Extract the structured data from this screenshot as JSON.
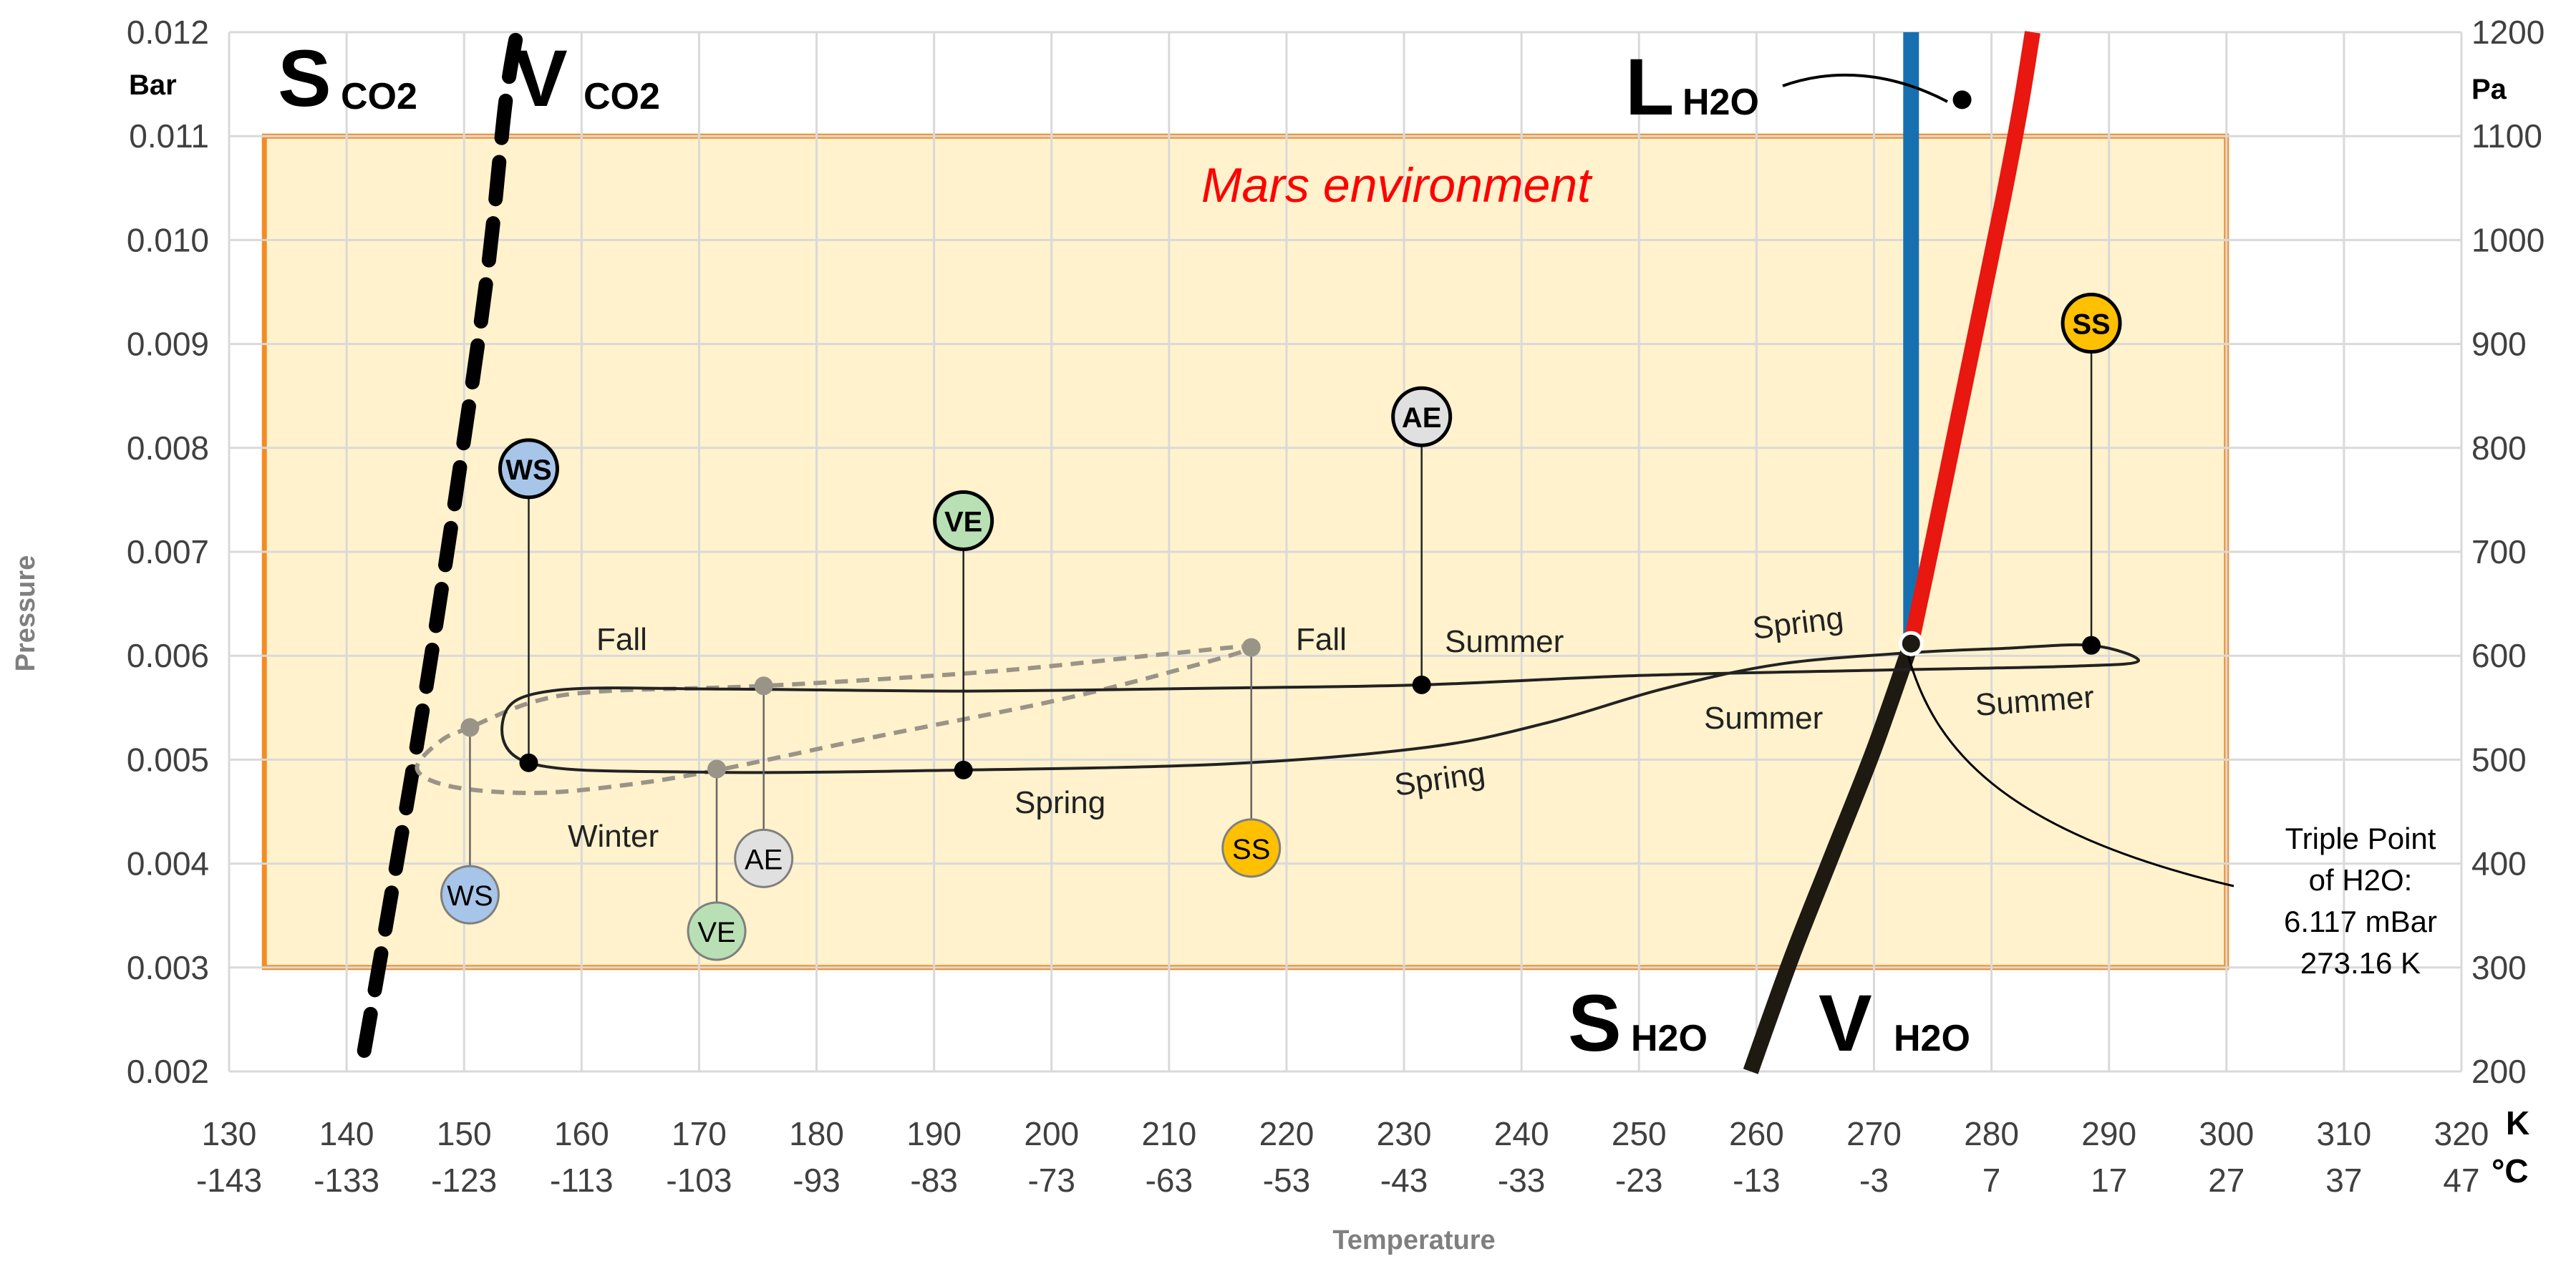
{
  "chart_data": {
    "type": "line",
    "title": "",
    "x_axis": {
      "label": "Temperature",
      "unit_top": "K",
      "unit_bottom": "°C",
      "range": [
        130,
        320
      ],
      "ticks_k": [
        "130",
        "140",
        "150",
        "160",
        "170",
        "180",
        "190",
        "200",
        "210",
        "220",
        "230",
        "240",
        "250",
        "260",
        "270",
        "280",
        "290",
        "300",
        "310",
        "320"
      ],
      "ticks_c": [
        "-143",
        "-133",
        "-123",
        "-113",
        "-103",
        "-93",
        "-83",
        "-73",
        "-63",
        "-53",
        "-43",
        "-33",
        "-23",
        "-13",
        "-3",
        "7",
        "17",
        "27",
        "37",
        "47"
      ]
    },
    "y_axis_left": {
      "label": "Pressure",
      "unit": "Bar",
      "range": [
        0.002,
        0.012
      ],
      "ticks": [
        "0.002",
        "0.003",
        "0.004",
        "0.005",
        "0.006",
        "0.007",
        "0.008",
        "0.009",
        "0.010",
        "0.011",
        "0.012"
      ]
    },
    "y_axis_right": {
      "unit": "Pa",
      "range": [
        200,
        1200
      ],
      "ticks": [
        "200",
        "300",
        "400",
        "500",
        "600",
        "700",
        "800",
        "900",
        "1000",
        "1100",
        "1200"
      ]
    },
    "grid": true,
    "mars_environment": {
      "label": "Mars environment",
      "x_range": [
        133,
        300
      ],
      "y_range": [
        0.003,
        0.011
      ]
    },
    "phase_labels": {
      "s_co2": {
        "main": "S",
        "sub": "CO2"
      },
      "v_co2": {
        "main": "V",
        "sub": "CO2"
      },
      "l_h2o": {
        "main": "L",
        "sub": "H2O"
      },
      "s_h2o": {
        "main": "S",
        "sub": "H2O"
      },
      "v_h2o": {
        "main": "V",
        "sub": "H2O"
      }
    },
    "series": [
      {
        "name": "CO2 sublimation boundary",
        "style": "dashed",
        "color": "#000000",
        "points": [
          [
            141.5,
            0.0022
          ],
          [
            143.5,
            0.0035
          ],
          [
            146.5,
            0.0055
          ],
          [
            149.5,
            0.0077
          ],
          [
            152,
            0.0097
          ],
          [
            153.5,
            0.0113
          ],
          [
            154.5,
            0.012
          ]
        ]
      },
      {
        "name": "H2O melting line",
        "color": "#1670b0",
        "points": [
          [
            273.16,
            0.006117
          ],
          [
            273.16,
            0.012
          ]
        ]
      },
      {
        "name": "H2O vaporization line",
        "color": "#e8170f",
        "points": [
          [
            273.16,
            0.006117
          ],
          [
            275,
            0.0071
          ],
          [
            277,
            0.0082
          ],
          [
            279,
            0.0093
          ],
          [
            281,
            0.0104
          ],
          [
            282.5,
            0.0113
          ],
          [
            283.5,
            0.012
          ]
        ]
      },
      {
        "name": "H2O sublimation line",
        "color": "#1e1a12",
        "points": [
          [
            259.5,
            0.002
          ],
          [
            263,
            0.0031
          ],
          [
            266.5,
            0.0041
          ],
          [
            270,
            0.0051
          ],
          [
            273.16,
            0.006117
          ]
        ]
      },
      {
        "name": "Seasonal cycle A",
        "style": "solid",
        "color": "#222222",
        "points": [
          [
            155.5,
            0.00497
          ],
          [
            170,
            0.00488
          ],
          [
            192.5,
            0.0049
          ],
          [
            215,
            0.00496
          ],
          [
            232,
            0.00512
          ],
          [
            242,
            0.00535
          ],
          [
            252,
            0.00568
          ],
          [
            262,
            0.00592
          ],
          [
            273.2,
            0.00603
          ],
          [
            281,
            0.00607
          ],
          [
            288.5,
            0.0061
          ],
          [
            292.5,
            0.00595
          ],
          [
            287,
            0.0059
          ],
          [
            270,
            0.00586
          ],
          [
            250,
            0.00581
          ],
          [
            231.5,
            0.00572
          ],
          [
            215,
            0.00569
          ],
          [
            193,
            0.00566
          ],
          [
            172,
            0.00568
          ],
          [
            158,
            0.00567
          ],
          [
            153.5,
            0.00545
          ],
          [
            155.5,
            0.00497
          ]
        ],
        "markers": [
          {
            "label": "WS",
            "x": 155.5,
            "y": 0.00497,
            "label_y": 0.0078,
            "color": "#a7c5e9"
          },
          {
            "label": "VE",
            "x": 192.5,
            "y": 0.0049,
            "label_y": 0.0073,
            "color": "#b8e0b4"
          },
          {
            "label": "AE",
            "x": 231.5,
            "y": 0.00572,
            "label_y": 0.0083,
            "color": "#e0e0e0"
          },
          {
            "label": "SS",
            "x": 288.5,
            "y": 0.0061,
            "label_y": 0.0092,
            "color": "#ffc000"
          }
        ]
      },
      {
        "name": "Seasonal cycle B",
        "style": "dashed",
        "color": "#9a9488",
        "points": [
          [
            150.5,
            0.00531
          ],
          [
            148,
            0.00518
          ],
          [
            146,
            0.00491
          ],
          [
            149,
            0.00474
          ],
          [
            156,
            0.00468
          ],
          [
            164,
            0.00476
          ],
          [
            172,
            0.00491
          ],
          [
            185,
            0.00522
          ],
          [
            200,
            0.00556
          ],
          [
            210,
            0.00584
          ],
          [
            217,
            0.00608
          ],
          [
            210,
            0.00602
          ],
          [
            195,
            0.00585
          ],
          [
            175.5,
            0.00571
          ],
          [
            162,
            0.00566
          ],
          [
            156,
            0.00556
          ],
          [
            150.5,
            0.00531
          ]
        ],
        "markers": [
          {
            "label": "WS",
            "x": 150.5,
            "y": 0.00531,
            "label_y": 0.0037,
            "color": "#a7c5e9"
          },
          {
            "label": "VE",
            "x": 171.5,
            "y": 0.00491,
            "label_y": 0.00335,
            "color": "#b8e0b4"
          },
          {
            "label": "AE",
            "x": 175.5,
            "y": 0.00571,
            "label_y": 0.00405,
            "color": "#e0e0e0"
          },
          {
            "label": "SS",
            "x": 217,
            "y": 0.00608,
            "label_y": 0.00415,
            "color": "#ffc000"
          }
        ]
      }
    ],
    "season_labels": [
      "Fall",
      "Fall",
      "Summer",
      "Spring",
      "Winter",
      "Spring",
      "Spring",
      "Summer",
      "Summer"
    ],
    "triple_point": {
      "x": 273.16,
      "y": 0.006117,
      "lines": [
        "Triple Point",
        "of H2O:",
        "6.117 mBar",
        "273.16 K"
      ]
    },
    "l_h2o_point": {
      "x": 277.5,
      "y": 0.01135
    }
  }
}
